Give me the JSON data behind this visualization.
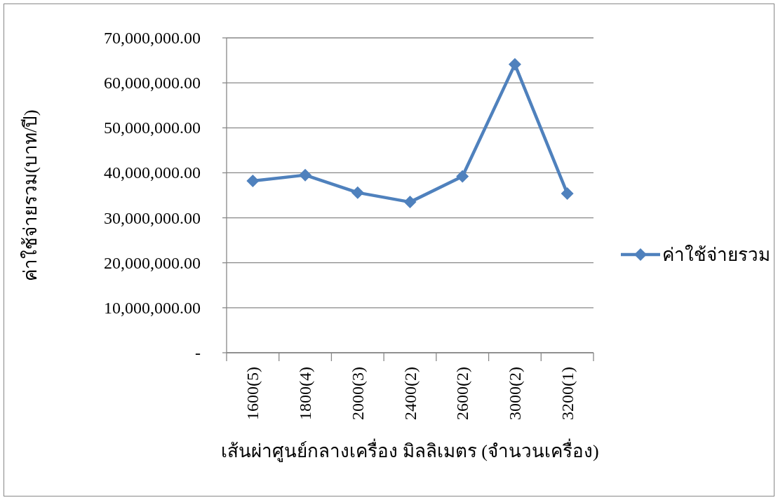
{
  "chart_data": {
    "type": "line",
    "xlabel": "เส้นผ่าศูนย์กลางเครื่อง มิลลิเมตร (จำนวนเครื่อง)",
    "ylabel": "ค่าใช้จ่ายรวม(บาท/ปี)",
    "categories": [
      "1600(5)",
      "1800(4)",
      "2000(3)",
      "2400(2)",
      "2600(2)",
      "3000(2)",
      "3200(1)"
    ],
    "series": [
      {
        "name": "ค่าใช้จ่ายรวม",
        "color": "#4f81bd",
        "values": [
          38200000,
          39500000,
          35600000,
          33500000,
          39200000,
          64100000,
          35400000
        ]
      }
    ],
    "ylim": [
      0,
      70000000
    ],
    "yticks": [
      {
        "value": 0,
        "label": "-"
      },
      {
        "value": 10000000,
        "label": "10,000,000.00"
      },
      {
        "value": 20000000,
        "label": "20,000,000.00"
      },
      {
        "value": 30000000,
        "label": "30,000,000.00"
      },
      {
        "value": 40000000,
        "label": "40,000,000.00"
      },
      {
        "value": 50000000,
        "label": "50,000,000.00"
      },
      {
        "value": 60000000,
        "label": "60,000,000.00"
      },
      {
        "value": 70000000,
        "label": "70,000,000.00"
      }
    ],
    "grid": "y",
    "legend": "right",
    "marker": "diamond",
    "line_style": "solid"
  }
}
